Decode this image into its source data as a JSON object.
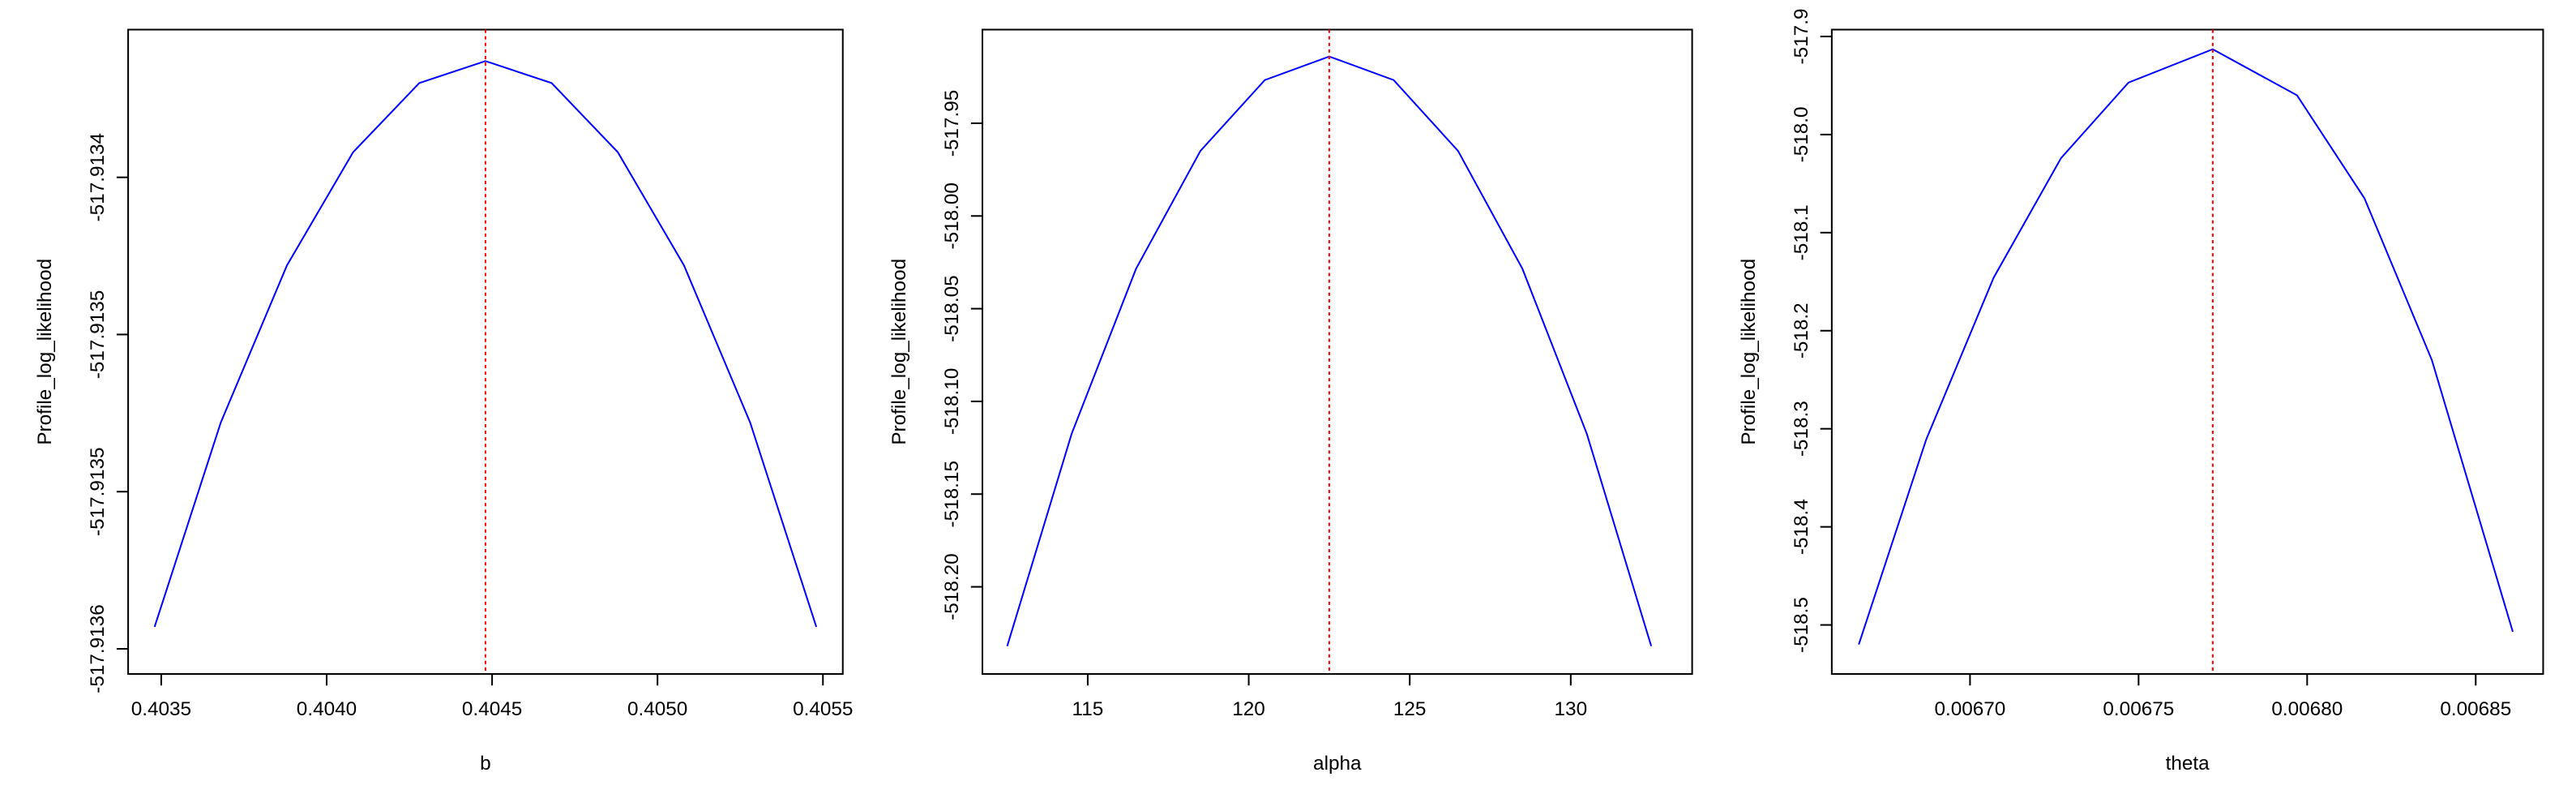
{
  "chart_data": [
    {
      "type": "line",
      "x_label": "b",
      "y_label": "Profile_log_likelihood",
      "x": [
        0.40348,
        0.40368,
        0.40388,
        0.40408,
        0.40428,
        0.40448,
        0.40468,
        0.40488,
        0.40508,
        0.40528,
        0.40548
      ],
      "values": [
        -517.913543,
        -517.913478,
        -517.913428,
        -517.913392,
        -517.91337,
        -517.913363,
        -517.91337,
        -517.913392,
        -517.913428,
        -517.913478,
        -517.913543
      ],
      "color": "#0000ff",
      "reference_line": 0.40448,
      "reference_line_color": "#ff0000",
      "xlim": [
        0.4034,
        0.40556
      ],
      "xticks": [
        0.4035,
        {
          "value": 0.404,
          "label": "0.4040"
        },
        0.4045,
        {
          "value": 0.405,
          "label": "0.4050"
        },
        0.4055
      ],
      "ylim": [
        -517.913558,
        -517.913353
      ],
      "yticks": [
        -517.9134,
        {
          "value": -517.91345,
          "label": "-517.9135"
        },
        -517.9135,
        {
          "value": -517.91355,
          "label": "-517.9136"
        }
      ]
    },
    {
      "type": "line",
      "x_label": "alpha",
      "y_label": "Profile_log_likelihood",
      "x": [
        112.5,
        114.5,
        116.5,
        118.5,
        120.5,
        122.5,
        124.5,
        126.5,
        128.5,
        130.5,
        132.5
      ],
      "values": [
        -518.232,
        -518.1175,
        -518.0285,
        -517.9649,
        -517.9267,
        -517.914,
        -517.9267,
        -517.9649,
        -518.0285,
        -518.1175,
        -518.232
      ],
      "color": "#0000ff",
      "reference_line": 122.5,
      "reference_line_color": "#ff0000",
      "xlim": [
        111.73,
        133.77
      ],
      "xticks": [
        115,
        120,
        125,
        130
      ],
      "ylim": [
        -518.247,
        -517.8995
      ],
      "yticks": [
        -517.95,
        {
          "value": -518,
          "label": "-518.00"
        },
        -518.05,
        {
          "value": -518.1,
          "label": "-518.10"
        },
        -518.15,
        {
          "value": -518.2,
          "label": "-518.20"
        }
      ]
    },
    {
      "type": "line",
      "x_label": "theta",
      "y_label": "Profile_log_likelihood",
      "x": [
        0.006667,
        0.006687,
        0.006707,
        0.006727,
        0.006747,
        0.006772,
        0.006797,
        0.006817,
        0.006837,
        0.006861
      ],
      "values": [
        -518.52,
        -518.311,
        -518.146,
        -518.024,
        -517.947,
        -517.913,
        -517.96,
        -518.065,
        -518.23,
        -518.507
      ],
      "color": "#0000ff",
      "reference_line": 0.006772,
      "reference_line_color": "#ff0000",
      "xlim": [
        0.006659,
        0.00687
      ],
      "xticks": [
        {
          "value": 0.0067,
          "label": "0.00670"
        },
        0.00675,
        {
          "value": 0.0068,
          "label": "0.00680"
        },
        0.00685
      ],
      "ylim": [
        -518.55,
        -517.893
      ],
      "yticks": [
        -517.9,
        {
          "value": -518,
          "label": "-518.0"
        },
        -518.1,
        -518.2,
        -518.3,
        -518.4,
        -518.5
      ]
    }
  ]
}
